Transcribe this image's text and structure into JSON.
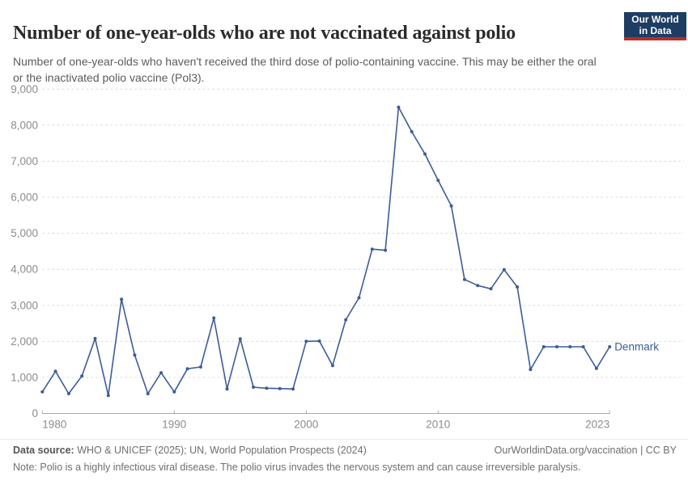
{
  "header": {
    "title": "Number of one-year-olds who are not vaccinated against polio",
    "subtitle": "Number of one-year-olds who haven't received the third dose of polio-containing vaccine. This may be either the oral or the inactivated polio vaccine (Pol3).",
    "logo": {
      "line1": "Our World",
      "line2": "in Data"
    },
    "logo_colors": {
      "background": "#1d3d63",
      "bar": "#bc2c26"
    }
  },
  "chart_data": {
    "type": "line",
    "title": "Number of one-year-olds who are not vaccinated against polio",
    "xlabel": "",
    "ylabel": "",
    "xlim": [
      1980,
      2023
    ],
    "ylim": [
      0,
      9000
    ],
    "x_ticks": [
      1980,
      1990,
      2000,
      2010,
      2023
    ],
    "y_ticks": [
      0,
      1000,
      2000,
      3000,
      4000,
      5000,
      6000,
      7000,
      8000,
      9000
    ],
    "grid": "horizontal-dashed",
    "legend_position": "end-of-line-label",
    "colors": {
      "line": "#3d5c96",
      "gridline": "#dcdcdc",
      "axis": "#a8a8a8",
      "tick_label": "#8c8c8c"
    },
    "series": [
      {
        "name": "Denmark",
        "color": "#3d5c96",
        "x": [
          1980,
          1981,
          1982,
          1983,
          1984,
          1985,
          1986,
          1987,
          1988,
          1989,
          1990,
          1991,
          1992,
          1993,
          1994,
          1995,
          1996,
          1997,
          1998,
          1999,
          2000,
          2001,
          2002,
          2003,
          2004,
          2005,
          2006,
          2007,
          2008,
          2009,
          2010,
          2011,
          2012,
          2013,
          2014,
          2015,
          2016,
          2017,
          2018,
          2019,
          2020,
          2021,
          2022,
          2023
        ],
        "values": [
          600,
          1170,
          550,
          1040,
          2080,
          500,
          3170,
          1620,
          550,
          1130,
          600,
          1240,
          1290,
          2650,
          680,
          2070,
          730,
          700,
          690,
          680,
          2000,
          2010,
          1330,
          2600,
          3210,
          4560,
          4530,
          8500,
          7820,
          7200,
          6470,
          5760,
          3720,
          3550,
          3460,
          3990,
          3510,
          1220,
          1850,
          1850,
          1850,
          1850,
          1250,
          1850
        ]
      }
    ]
  },
  "footer": {
    "datasource_label": "Data source:",
    "datasource_text": " WHO & UNICEF (2025); UN, World Population Prospects (2024)",
    "link": "OurWorldinData.org/vaccination | CC BY",
    "note_label": "Note:",
    "note_text": " Polio is a highly infectious viral disease. The polio virus invades the nervous system and can cause irreversible paralysis."
  }
}
